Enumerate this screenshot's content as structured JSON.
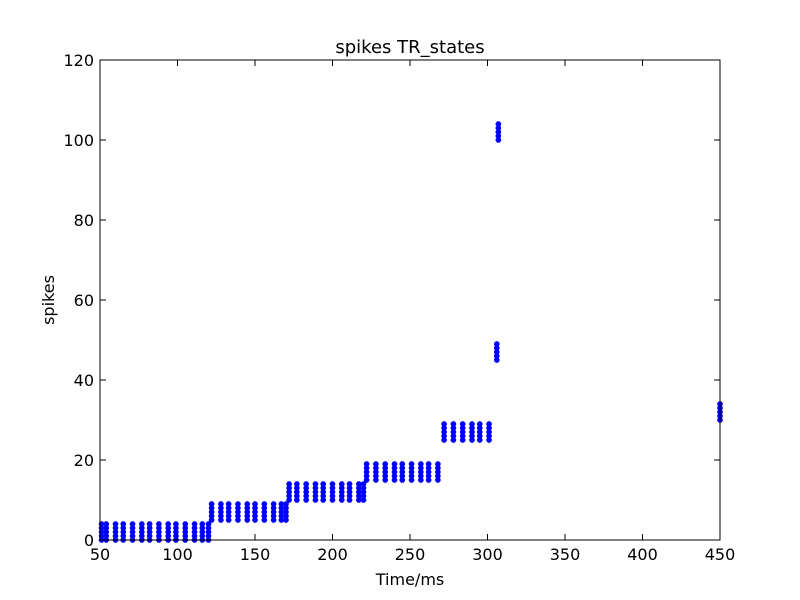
{
  "chart_data": {
    "type": "scatter",
    "title": "spikes TR_states",
    "xlabel": "Time/ms",
    "ylabel": "spikes",
    "xlim": [
      50,
      450
    ],
    "ylim": [
      0,
      120
    ],
    "xticks": [
      50,
      100,
      150,
      200,
      250,
      300,
      350,
      400,
      450
    ],
    "yticks": [
      0,
      20,
      40,
      60,
      80,
      100,
      120
    ],
    "grid": false,
    "legend": "none",
    "marker_color": "#0000ff",
    "marker_size": 2.6,
    "groups": [
      {
        "times": [
          51,
          54,
          60,
          65,
          71,
          77,
          82,
          88,
          94,
          99,
          105,
          111,
          116,
          120
        ],
        "neurons": [
          0,
          1,
          2,
          3,
          4
        ]
      },
      {
        "times": [
          122,
          128,
          133,
          139,
          145,
          150,
          156,
          162,
          167,
          170
        ],
        "neurons": [
          5,
          6,
          7,
          8,
          9
        ]
      },
      {
        "times": [
          172,
          177,
          183,
          189,
          194,
          200,
          206,
          211,
          217,
          220
        ],
        "neurons": [
          10,
          11,
          12,
          13,
          14
        ]
      },
      {
        "times": [
          222,
          228,
          234,
          240,
          245,
          251,
          257,
          262,
          268
        ],
        "neurons": [
          15,
          16,
          17,
          18,
          19
        ]
      },
      {
        "times": [
          272,
          278,
          284,
          290,
          295,
          301
        ],
        "neurons": [
          25,
          26,
          27,
          28,
          29
        ]
      },
      {
        "times": [
          306
        ],
        "neurons": [
          45,
          46,
          47,
          48,
          49
        ]
      },
      {
        "times": [
          307
        ],
        "neurons": [
          100,
          101,
          102,
          103,
          104
        ]
      },
      {
        "times": [
          450
        ],
        "neurons": [
          30,
          31,
          32,
          33,
          34
        ]
      }
    ]
  }
}
